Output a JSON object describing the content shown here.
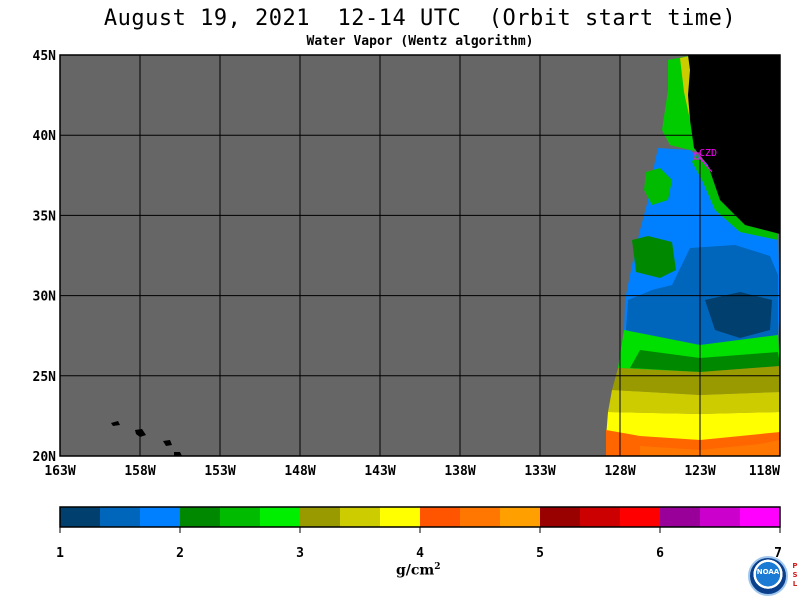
{
  "header": {
    "title": "August 19, 2021  12-14 UTC  (Orbit start time)",
    "subtitle": "Water Vapor (Wentz algorithm)"
  },
  "map": {
    "lat_labels": [
      "45N",
      "40N",
      "35N",
      "30N",
      "25N",
      "20N"
    ],
    "lon_labels": [
      "163W",
      "158W",
      "153W",
      "148W",
      "143W",
      "138W",
      "133W",
      "128W",
      "123W",
      "118W"
    ],
    "station_label": "CZD",
    "colors": {
      "no_data": "#666666",
      "land": "#000000",
      "gridline": "#000000",
      "station": "#ff00ff"
    },
    "field_bands": [
      {
        "lat_top": 45.0,
        "lat_bottom": 40.0,
        "value_range": "2.0-2.5 g/cm2",
        "color": "#00cc00"
      },
      {
        "lat_top": 39.0,
        "lat_bottom": 33.0,
        "value_range": "1.5-2.0 g/cm2",
        "color": "#0080ff"
      },
      {
        "lat_top": 33.0,
        "lat_bottom": 27.5,
        "value_range": "1.25-1.5 g/cm2",
        "color": "#0066bb"
      },
      {
        "lat_top": 27.5,
        "lat_bottom": 25.0,
        "value_range": "2.0-3.0 g/cm2",
        "color": "#00e000"
      },
      {
        "lat_top": 25.0,
        "lat_bottom": 23.5,
        "value_range": "3.0-3.5 g/cm2",
        "color": "#999900"
      },
      {
        "lat_top": 23.5,
        "lat_bottom": 21.5,
        "value_range": "3.5-4.0 g/cm2",
        "color": "#ffff00"
      },
      {
        "lat_top": 21.5,
        "lat_bottom": 20.0,
        "value_range": "4.0-4.5 g/cm2",
        "color": "#ff6600"
      }
    ]
  },
  "colorbar": {
    "colors": [
      "#003f6e",
      "#0066bb",
      "#0080ff",
      "#008800",
      "#00bb00",
      "#00ee00",
      "#999900",
      "#cccc00",
      "#ffff00",
      "#ff5500",
      "#ff7700",
      "#ffa000",
      "#990000",
      "#cc0000",
      "#ff0000",
      "#990099",
      "#cc00cc",
      "#ff00ff"
    ],
    "tick_labels": [
      "1",
      "2",
      "3",
      "4",
      "5",
      "6",
      "7"
    ],
    "units": "g/cm",
    "units_sup": "2"
  },
  "logo": {
    "label": "NOAA",
    "side_text": [
      "P",
      "S",
      "L"
    ]
  }
}
